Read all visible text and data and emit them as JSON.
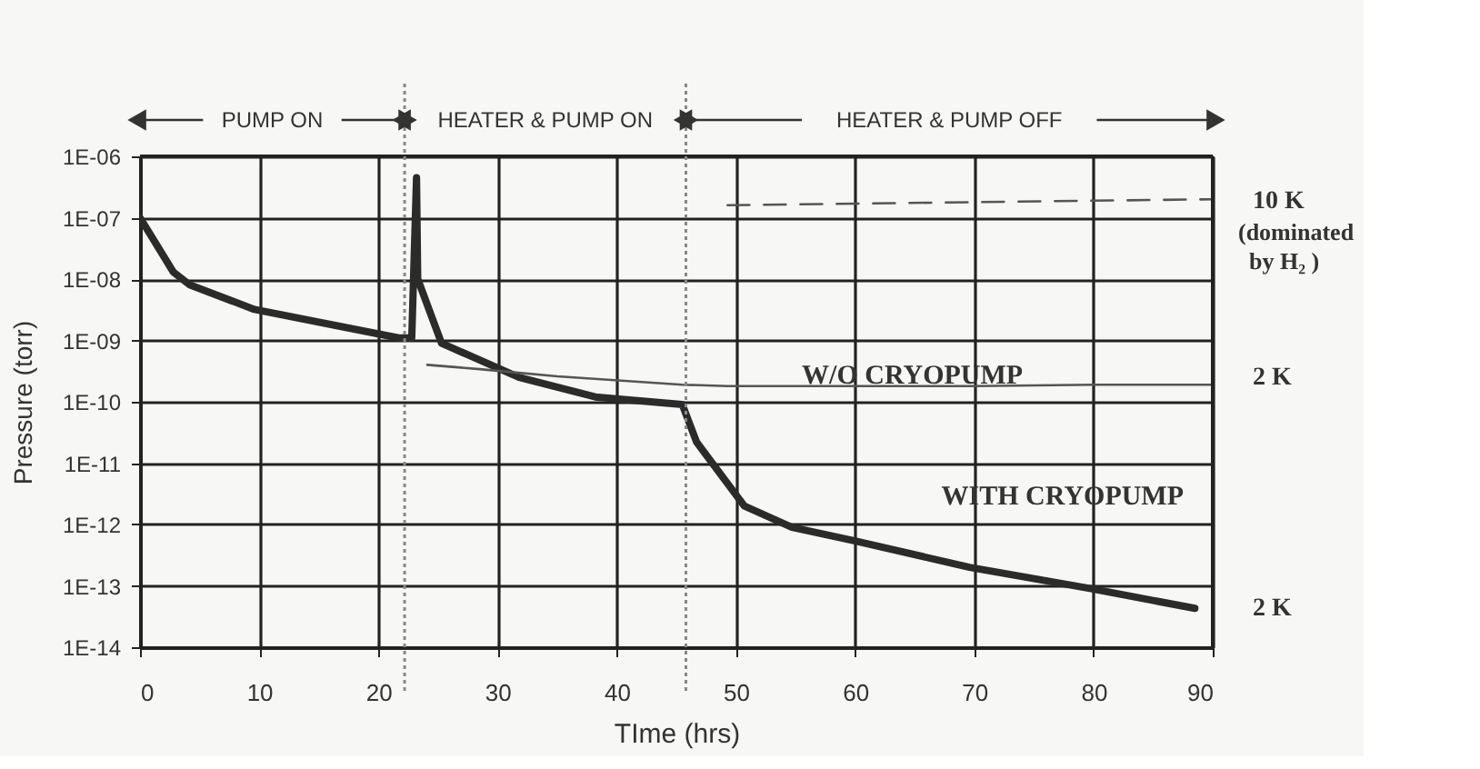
{
  "chart_data": {
    "type": "line",
    "xlabel": "TIme  (hrs)",
    "ylabel": "Pressure  (torr)",
    "log": "y",
    "grid": true,
    "marker": "none",
    "line_style": "solid",
    "xlim": [
      0,
      90
    ],
    "xticks": [
      0,
      10,
      20,
      30,
      40,
      50,
      60,
      70,
      80,
      90
    ],
    "ylim": [
      1e-14,
      1e-06
    ],
    "yticks": [
      {
        "value": 1e-14,
        "label": "1E-14"
      },
      {
        "value": 1e-13,
        "label": "1E-13"
      },
      {
        "value": 1e-12,
        "label": "1E-12"
      },
      {
        "value": 1e-11,
        "label": "1E-11"
      },
      {
        "value": 1e-10,
        "label": "1E-10"
      },
      {
        "value": 1e-09,
        "label": "1E-09"
      },
      {
        "value": 1e-08,
        "label": "1E-08"
      },
      {
        "value": 1e-07,
        "label": "1E-07"
      },
      {
        "value": 1e-06,
        "label": "1E-06"
      }
    ],
    "series": [
      {
        "name": "WITH CRYOPUMP",
        "color": "#2b2b2b",
        "x": [
          0,
          2.8,
          4.2,
          9.6,
          21.7,
          22.8,
          23.2,
          23.3,
          25.3,
          31.8,
          38.2,
          45.5,
          46.7,
          50.7,
          54.7,
          60,
          69.6,
          79.8,
          88.5
        ],
        "values": [
          1e-07,
          1.3e-08,
          8e-09,
          3.2e-09,
          1.1e-09,
          1.1e-09,
          4.5e-07,
          1e-08,
          9e-10,
          2.5e-10,
          1.2e-10,
          9e-11,
          2.2e-11,
          2e-12,
          9e-13,
          5.4e-13,
          2e-13,
          9e-14,
          4.3e-14
        ]
      },
      {
        "name": "W/O CRYOPUMP",
        "color": "#555555",
        "x": [
          24.1,
          28.5,
          35,
          45.5,
          49.3,
          60,
          70,
          80,
          90
        ],
        "values": [
          4e-10,
          3.4e-10,
          2.6e-10,
          1.9e-10,
          1.8e-10,
          1.8e-10,
          1.8e-10,
          1.9e-10,
          1.9e-10
        ]
      },
      {
        "color": "#555555",
        "line_style": "dashed",
        "x": [
          49.3,
          90
        ],
        "values": [
          1.6e-07,
          2e-07
        ]
      }
    ],
    "ref_lines": [
      {
        "axis": "x",
        "value": 22.2,
        "color": "#888888",
        "line_style": "dotted"
      },
      {
        "axis": "x",
        "value": 45.8,
        "color": "#888888",
        "line_style": "dotted"
      }
    ],
    "annotations": [
      "PUMP ON",
      "HEATER & PUMP ON",
      "HEATER & PUMP OFF",
      "10 K",
      "(dominated",
      "by H₂ )",
      "2 K",
      "2 K"
    ]
  }
}
